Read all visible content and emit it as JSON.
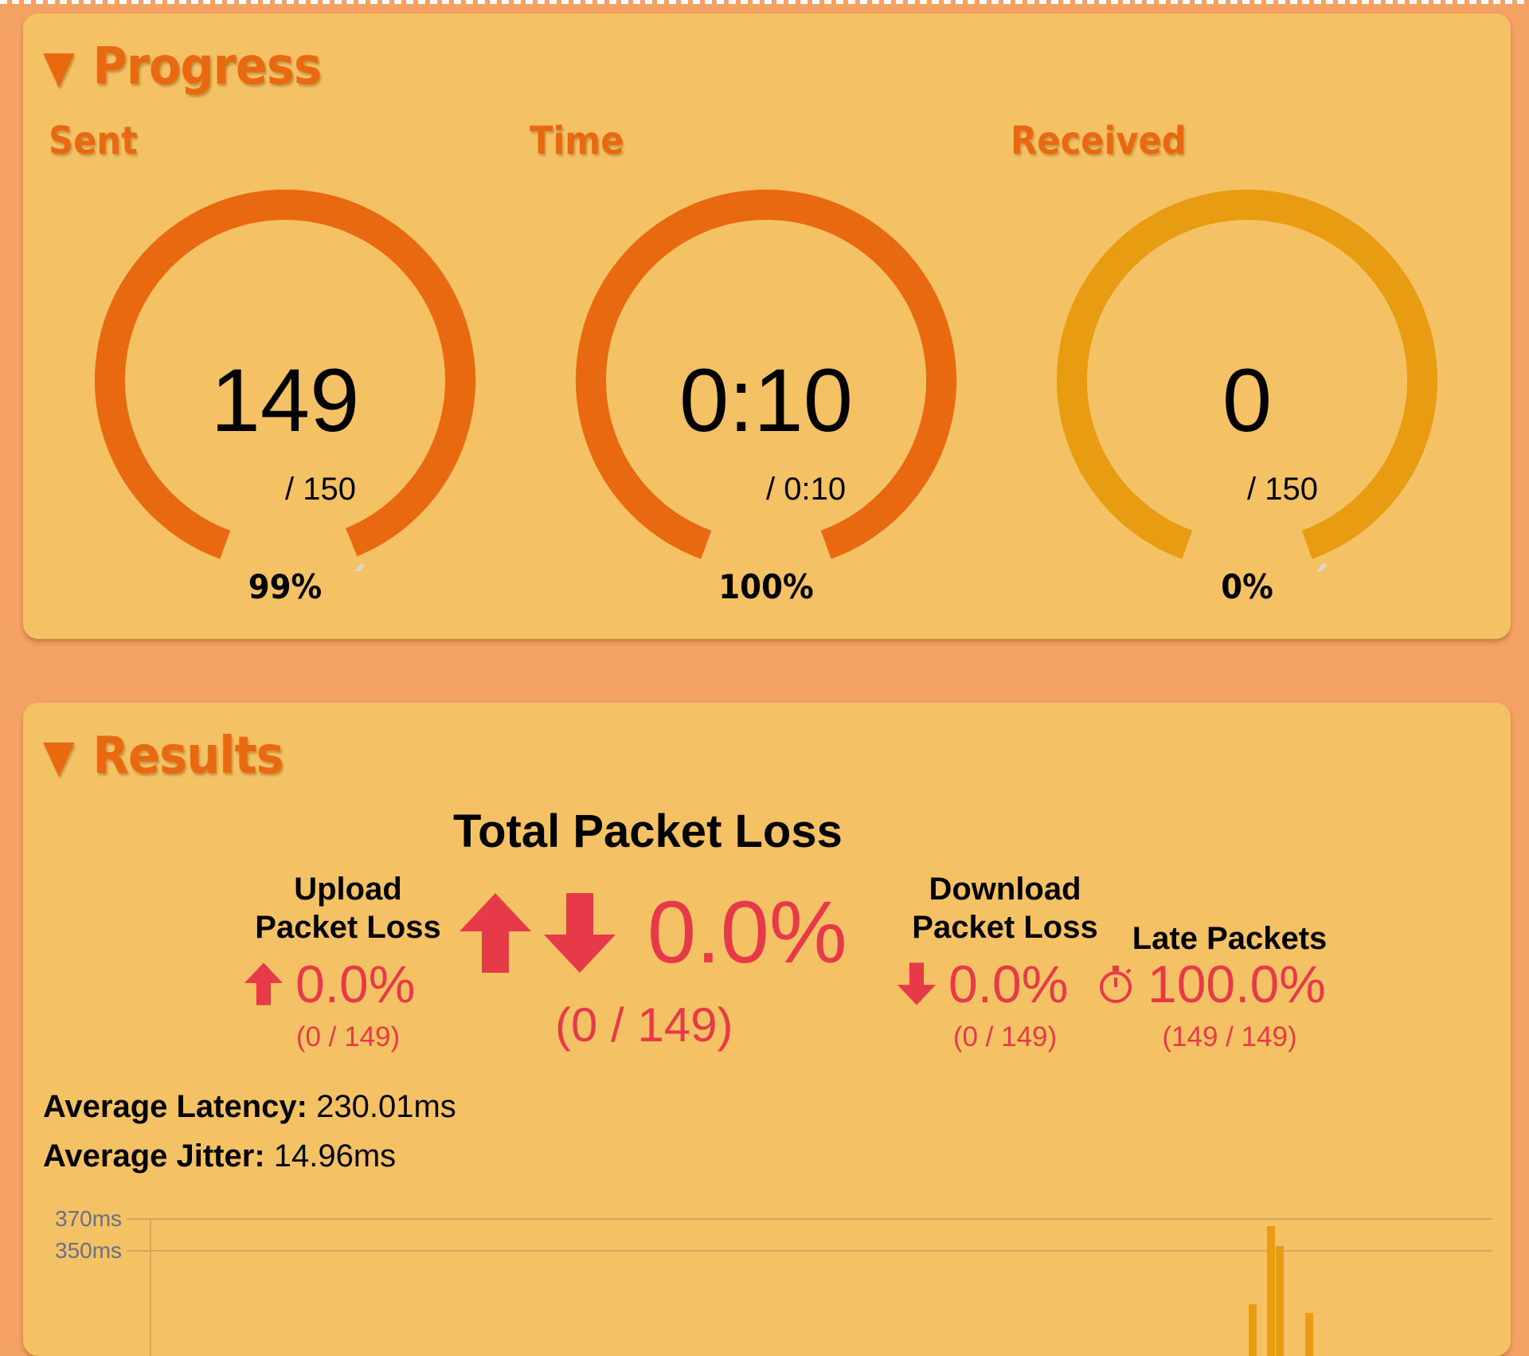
{
  "progress": {
    "title": "Progress",
    "gauges": [
      {
        "label": "Sent",
        "value": "149",
        "total": "/ 150",
        "percent_label": "99%",
        "fraction": 0.993
      },
      {
        "label": "Time",
        "value": "0:10",
        "total": "/ 0:10",
        "percent_label": "100%",
        "fraction": 1.0
      },
      {
        "label": "Received",
        "value": "0",
        "total": "/ 150",
        "percent_label": "0%",
        "fraction": 0.0
      }
    ]
  },
  "results": {
    "title": "Results",
    "total_loss": {
      "title": "Total Packet Loss",
      "value": "0.0%",
      "count": "(0 / 149)"
    },
    "upload_loss": {
      "title_line1": "Upload",
      "title_line2": "Packet Loss",
      "value": "0.0%",
      "count": "(0 / 149)"
    },
    "download_loss": {
      "title_line1": "Download",
      "title_line2": "Packet Loss",
      "value": "0.0%",
      "count": "(0 / 149)"
    },
    "late_packets": {
      "title": "Late Packets",
      "value": "100.0%",
      "count": "(149 / 149)"
    },
    "avg_latency": {
      "label": "Average Latency:",
      "value": "230.01ms"
    },
    "avg_jitter": {
      "label": "Average Jitter:",
      "value": "14.96ms"
    }
  },
  "chart_data": {
    "type": "bar",
    "ylabel": "",
    "ytick_labels": [
      "370ms",
      "350ms"
    ],
    "ylim_visible": [
      340,
      370
    ]
  },
  "colors": {
    "accent": "#e8690f",
    "received_ring": "#e89c12",
    "loss_red": "#e63a48",
    "panel": "#f4c265",
    "background": "#f4a263"
  },
  "icons": {
    "collapse": "triangle-down-icon",
    "upload": "arrow-up-icon",
    "download": "arrow-down-icon",
    "late": "stopwatch-icon"
  }
}
